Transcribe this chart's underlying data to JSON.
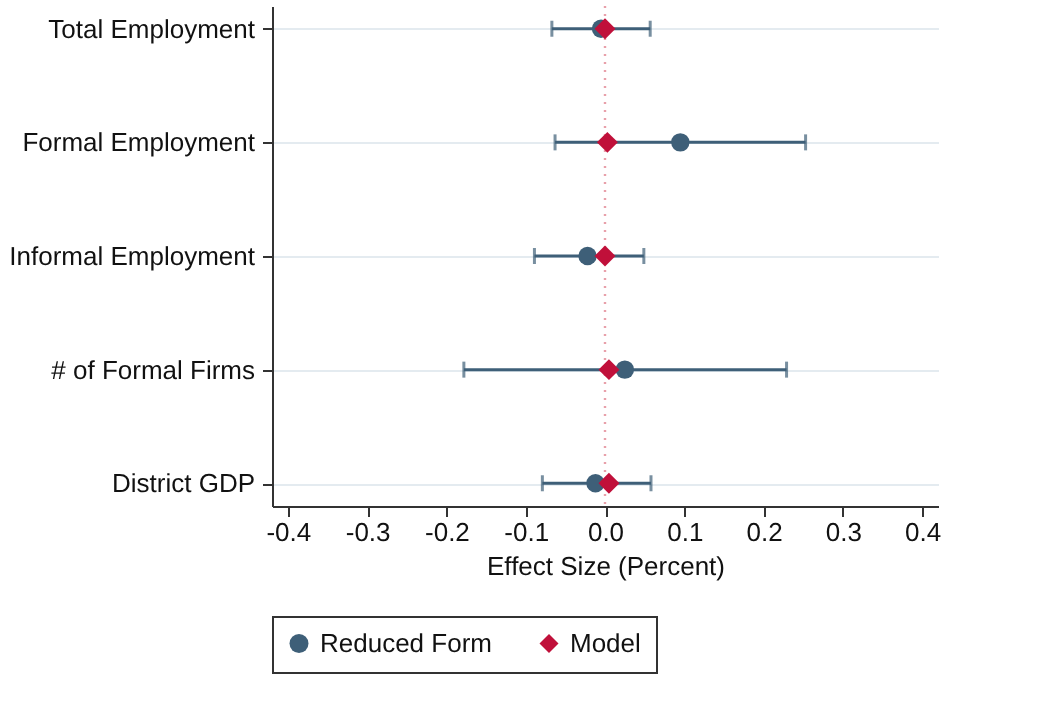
{
  "chart_data": {
    "type": "scatter",
    "orientation": "horizontal",
    "xlabel": "Effect Size (Percent)",
    "categories": [
      "Total Employment",
      "Formal Employment",
      "Informal Employment",
      "# of Formal Firms",
      "District GDP"
    ],
    "xlim": [
      -0.42,
      0.42
    ],
    "xticks": [
      -0.4,
      -0.3,
      -0.2,
      -0.1,
      {
        "value": 0,
        "label": "0.0"
      },
      0.1,
      0.2,
      0.3,
      0.4
    ],
    "series": [
      {
        "name": "Reduced Form",
        "color": "#3e5f78",
        "marker": "circle",
        "values": [
          -0.005,
          0.095,
          -0.022,
          0.025,
          -0.012
        ],
        "errors": [
          [
            -0.067,
            0.057
          ],
          [
            -0.063,
            0.253
          ],
          [
            -0.089,
            0.049
          ],
          [
            -0.178,
            0.229
          ],
          [
            -0.079,
            0.058
          ]
        ]
      },
      {
        "name": "Model",
        "color": "#c0103a",
        "marker": "diamond",
        "values": [
          0.0,
          0.003,
          0.0,
          0.005,
          0.005
        ]
      }
    ],
    "ref_lines": [
      {
        "axis": "x",
        "value": 0,
        "color": "#e8a0aa",
        "line_style": "dotted"
      }
    ],
    "grid": "y",
    "legend": "bottom"
  }
}
